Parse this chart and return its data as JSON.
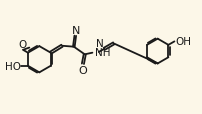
{
  "background_color": "#fcf7e8",
  "bond_color": "#1a1a1a",
  "bond_width": 1.3,
  "font_size": 7.5,
  "fig_width": 2.03,
  "fig_height": 1.15,
  "dpi": 100,
  "xlim": [
    -0.5,
    10.5
  ],
  "ylim": [
    0.5,
    5.8
  ]
}
